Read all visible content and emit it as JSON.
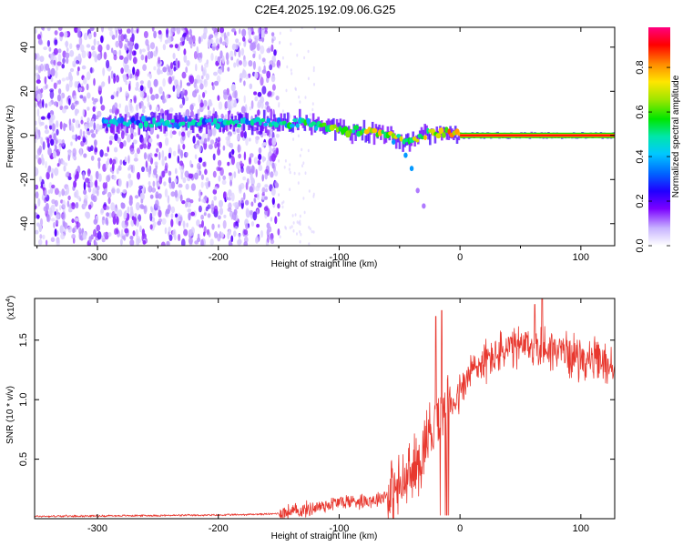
{
  "title": "C2E4.2025.192.09.06.G25",
  "colors": {
    "snr_line": "#e8382f",
    "axis": "#000000"
  },
  "chart_data": [
    {
      "type": "heatmap",
      "xlabel": "Height of straight line (km)",
      "ylabel": "Frequency (Hz)",
      "xlim": [
        -352,
        128
      ],
      "ylim": [
        -50,
        49
      ],
      "x_ticks": [
        -300,
        -200,
        -100,
        0,
        100
      ],
      "y_ticks": [
        -40,
        -20,
        0,
        20,
        40
      ],
      "colorbar": {
        "label": "Normalized spectral amplitude",
        "range": [
          0,
          0.98
        ],
        "ticks": [
          0.0,
          0.2,
          0.4,
          0.6,
          0.8
        ],
        "tick_labels": [
          "0.0",
          "0.2",
          "0.4",
          "0.6",
          "0.8"
        ],
        "colormap": [
          "#ffffff",
          "#c8b4ff",
          "#7b00ff",
          "#2000ff",
          "#00b4ff",
          "#00e6aa",
          "#00e600",
          "#c8e600",
          "#ffc800",
          "#ff6a00",
          "#ff0000",
          "#ff0080"
        ]
      },
      "noise_region_x": [
        -352,
        -150
      ],
      "signal_track": [
        {
          "x": -295,
          "f": 5.5,
          "a": 0.35
        },
        {
          "x": -250,
          "f": 6.0,
          "a": 0.4
        },
        {
          "x": -200,
          "f": 5.5,
          "a": 0.38
        },
        {
          "x": -155,
          "f": 6.0,
          "a": 0.42
        },
        {
          "x": -130,
          "f": 6.0,
          "a": 0.45
        },
        {
          "x": -110,
          "f": 4.0,
          "a": 0.5
        },
        {
          "x": -90,
          "f": 2.0,
          "a": 0.55
        },
        {
          "x": -75,
          "f": 1.5,
          "a": 0.6
        },
        {
          "x": -60,
          "f": 0.5,
          "a": 0.62
        },
        {
          "x": -45,
          "f": -3.0,
          "a": 0.55
        },
        {
          "x": -35,
          "f": -1.0,
          "a": 0.55
        },
        {
          "x": -20,
          "f": 1.5,
          "a": 0.65
        },
        {
          "x": -10,
          "f": 1.5,
          "a": 0.7
        },
        {
          "x": 0,
          "f": 0.0,
          "a": 0.85
        },
        {
          "x": 50,
          "f": 0.0,
          "a": 0.9
        },
        {
          "x": 128,
          "f": 0.0,
          "a": 0.92
        }
      ],
      "branch_track": [
        {
          "x": -55,
          "f": -3.0
        },
        {
          "x": -45,
          "f": -9.0
        },
        {
          "x": -40,
          "f": -15.0
        },
        {
          "x": -35,
          "f": -25.0
        },
        {
          "x": -30,
          "f": -32.0
        }
      ]
    },
    {
      "type": "line",
      "xlabel": "Height of straight line (km)",
      "ylabel": "SNR (10 * v/v)",
      "multiplier_label": "(x10",
      "multiplier_exponent": "4",
      "xlim": [
        -352,
        128
      ],
      "ylim": [
        0,
        1.85
      ],
      "x_ticks": [
        -300,
        -200,
        -100,
        0,
        100
      ],
      "y_ticks": [
        0.5,
        1.0,
        1.5
      ],
      "y_tick_labels": [
        "0.5",
        "1.0",
        "1.5"
      ],
      "series": [
        {
          "color": "#e8382f",
          "mean_profile": [
            [
              -352,
              0.02
            ],
            [
              -200,
              0.03
            ],
            [
              -155,
              0.04
            ],
            [
              -130,
              0.07
            ],
            [
              -100,
              0.14
            ],
            [
              -70,
              0.16
            ],
            [
              -50,
              0.25
            ],
            [
              -35,
              0.45
            ],
            [
              -25,
              0.75
            ],
            [
              -15,
              0.9
            ],
            [
              0,
              1.05
            ],
            [
              10,
              1.25
            ],
            [
              25,
              1.35
            ],
            [
              40,
              1.42
            ],
            [
              60,
              1.45
            ],
            [
              80,
              1.42
            ],
            [
              100,
              1.35
            ],
            [
              128,
              1.28
            ]
          ],
          "peaks": [
            {
              "x": -20,
              "y": 1.7
            },
            {
              "x": -15,
              "y": 1.75
            },
            {
              "x": 62,
              "y": 1.8
            },
            {
              "x": 68,
              "y": 1.85
            }
          ]
        }
      ]
    }
  ]
}
